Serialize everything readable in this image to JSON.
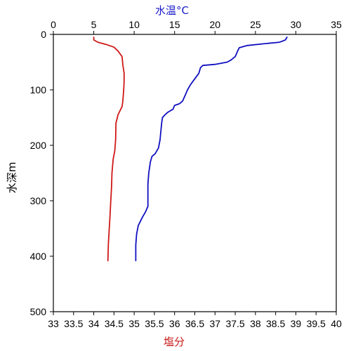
{
  "chart_data": {
    "type": "line",
    "title": "",
    "axes": {
      "y": {
        "label": "水深m",
        "range": [
          0,
          500
        ],
        "ticks": [
          0,
          100,
          200,
          300,
          400,
          500
        ],
        "direction": "down"
      },
      "x_top": {
        "label": "水温°C",
        "label_color": "#1a1ac8",
        "range": [
          0,
          35
        ],
        "ticks": [
          0,
          5,
          10,
          15,
          20,
          25,
          30,
          35
        ]
      },
      "x_bottom": {
        "label": "塩分",
        "label_color": "#c81a1a",
        "range": [
          33,
          40
        ],
        "ticks": [
          33,
          33.5,
          34,
          34.5,
          35,
          35.5,
          36,
          36.5,
          37,
          37.5,
          38,
          38.5,
          39,
          39.5,
          40
        ]
      }
    },
    "grid": false,
    "series": [
      {
        "axis": "x_top",
        "color": "#1010c0",
        "points": [
          [
            28.9,
            5
          ],
          [
            28.7,
            10
          ],
          [
            28.0,
            14
          ],
          [
            26.0,
            17
          ],
          [
            24.0,
            20
          ],
          [
            23.0,
            24
          ],
          [
            22.8,
            30
          ],
          [
            22.5,
            40
          ],
          [
            22.0,
            46
          ],
          [
            21.5,
            50
          ],
          [
            20.0,
            54
          ],
          [
            18.5,
            56
          ],
          [
            18.2,
            60
          ],
          [
            18.0,
            70
          ],
          [
            17.5,
            80
          ],
          [
            17.0,
            90
          ],
          [
            16.6,
            100
          ],
          [
            16.3,
            110
          ],
          [
            16.0,
            120
          ],
          [
            15.6,
            125
          ],
          [
            15.0,
            128
          ],
          [
            14.8,
            135
          ],
          [
            14.2,
            140
          ],
          [
            13.8,
            145
          ],
          [
            13.5,
            150
          ],
          [
            13.4,
            160
          ],
          [
            13.3,
            175
          ],
          [
            13.2,
            190
          ],
          [
            13.0,
            205
          ],
          [
            12.6,
            215
          ],
          [
            12.2,
            220
          ],
          [
            12.0,
            230
          ],
          [
            11.8,
            250
          ],
          [
            11.7,
            270
          ],
          [
            11.7,
            290
          ],
          [
            11.7,
            310
          ],
          [
            11.4,
            320
          ],
          [
            11.0,
            330
          ],
          [
            10.5,
            345
          ],
          [
            10.3,
            360
          ],
          [
            10.2,
            380
          ],
          [
            10.2,
            395
          ],
          [
            10.2,
            408
          ]
        ]
      },
      {
        "axis": "x_bottom",
        "color": "#d01818",
        "points": [
          [
            34.0,
            5
          ],
          [
            34.0,
            10
          ],
          [
            34.1,
            14
          ],
          [
            34.3,
            18
          ],
          [
            34.5,
            23
          ],
          [
            34.6,
            30
          ],
          [
            34.7,
            40
          ],
          [
            34.72,
            55
          ],
          [
            34.75,
            70
          ],
          [
            34.75,
            85
          ],
          [
            34.74,
            100
          ],
          [
            34.72,
            120
          ],
          [
            34.7,
            130
          ],
          [
            34.6,
            145
          ],
          [
            34.55,
            160
          ],
          [
            34.54,
            190
          ],
          [
            34.52,
            210
          ],
          [
            34.48,
            225
          ],
          [
            34.45,
            250
          ],
          [
            34.44,
            275
          ],
          [
            34.42,
            300
          ],
          [
            34.4,
            330
          ],
          [
            34.38,
            355
          ],
          [
            34.36,
            380
          ],
          [
            34.35,
            408
          ]
        ]
      }
    ]
  }
}
